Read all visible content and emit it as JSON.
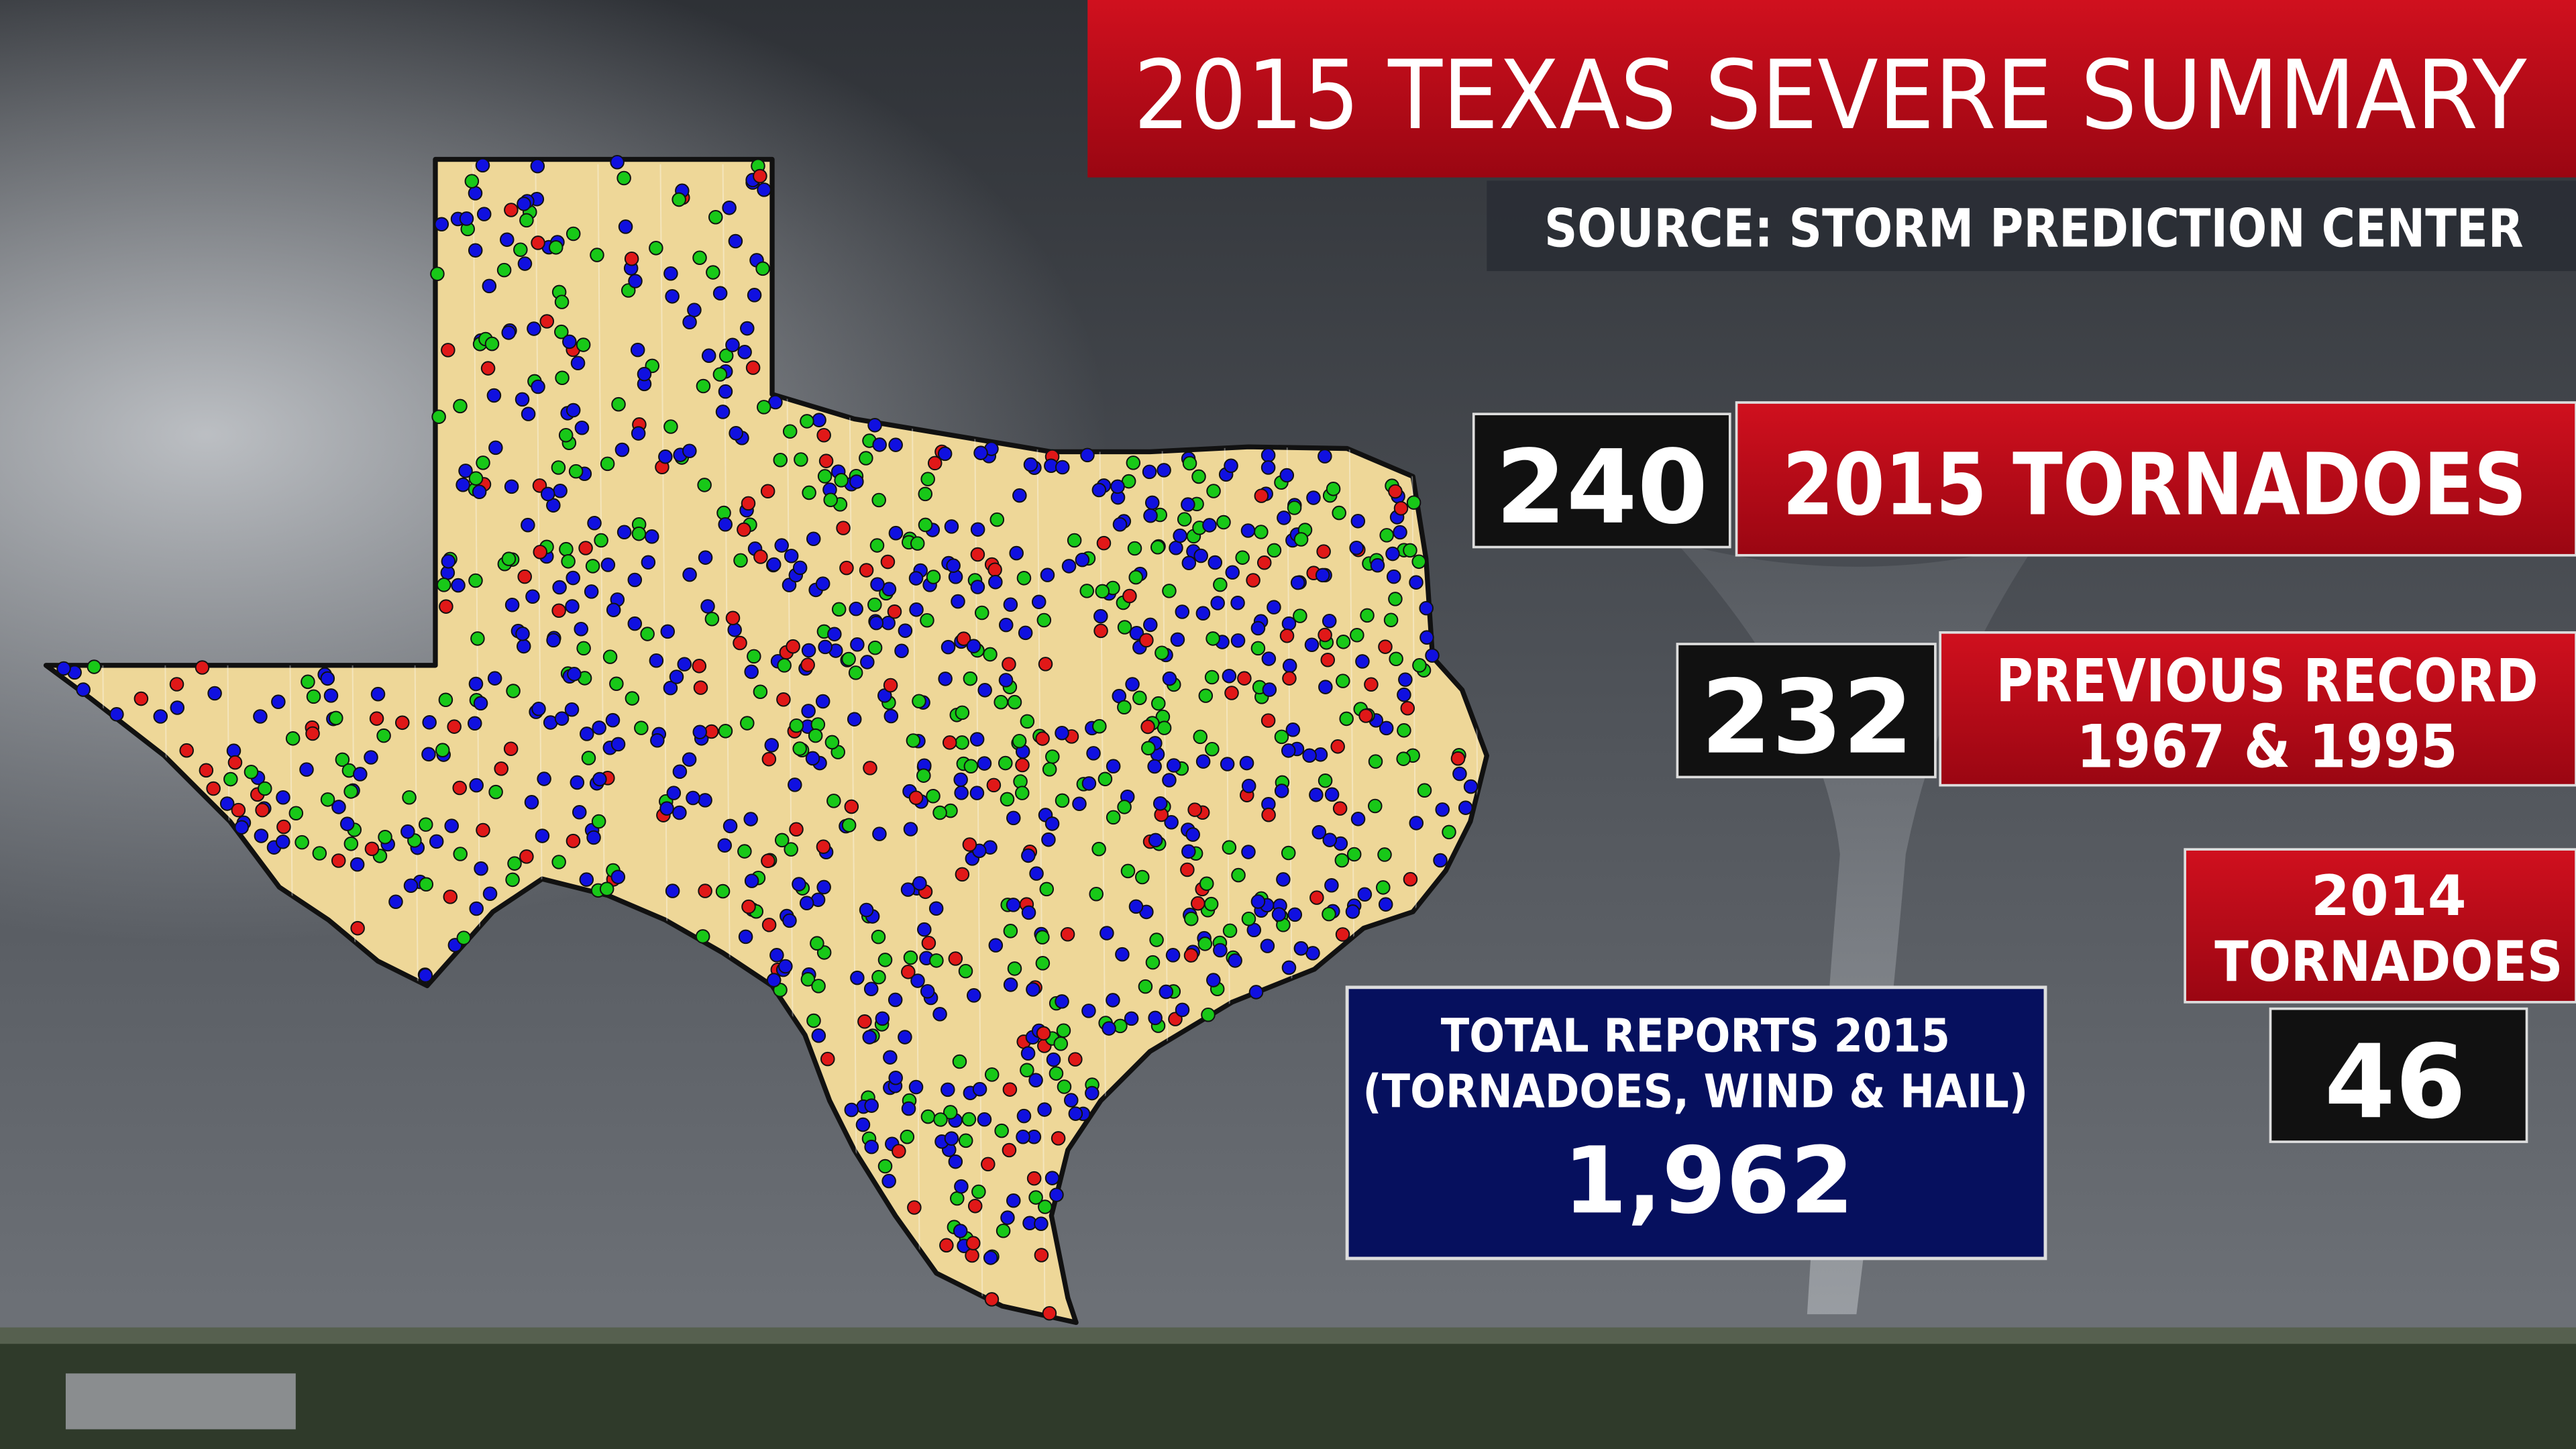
{
  "header": {
    "title": "2015 TEXAS SEVERE SUMMARY",
    "source": "SOURCE: STORM PREDICTION CENTER"
  },
  "tornadoes_2015": {
    "value": "240",
    "label": "2015 TORNADOES"
  },
  "previous_record": {
    "value": "232",
    "label": [
      "PREVIOUS RECORD",
      "1967 & 1995"
    ]
  },
  "tornadoes_2014": {
    "value": "46",
    "label": [
      "2014",
      "TORNADOES"
    ]
  },
  "total_reports": {
    "label": [
      "TOTAL REPORTS 2015",
      "(TORNADOES, WIND & HAIL)"
    ],
    "value": "1,962"
  }
}
